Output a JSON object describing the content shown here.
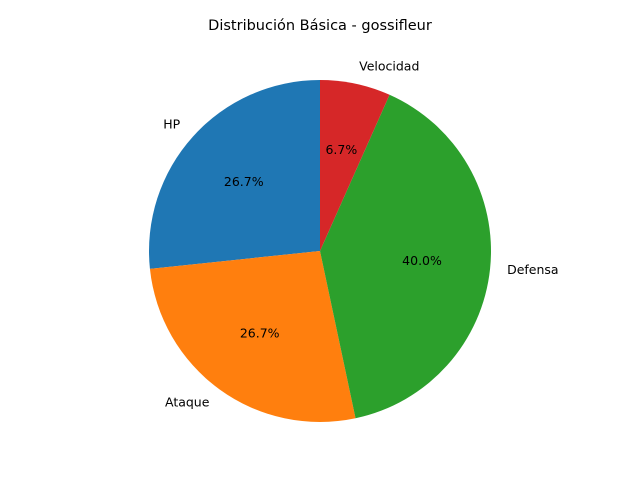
{
  "chart_data": {
    "type": "pie",
    "title": "Distribución Básica - gossifleur",
    "labels": [
      "HP",
      "Ataque",
      "Defensa",
      "Velocidad"
    ],
    "values": [
      4,
      4,
      6,
      1
    ],
    "percent_labels": [
      "26.7%",
      "26.7%",
      "40.0%",
      "6.7%"
    ],
    "colors": [
      "#1f77b4",
      "#ff7f0e",
      "#2ca02c",
      "#d62728"
    ],
    "start_angle_deg": 90,
    "direction": "counterclockwise",
    "legend": "none"
  }
}
